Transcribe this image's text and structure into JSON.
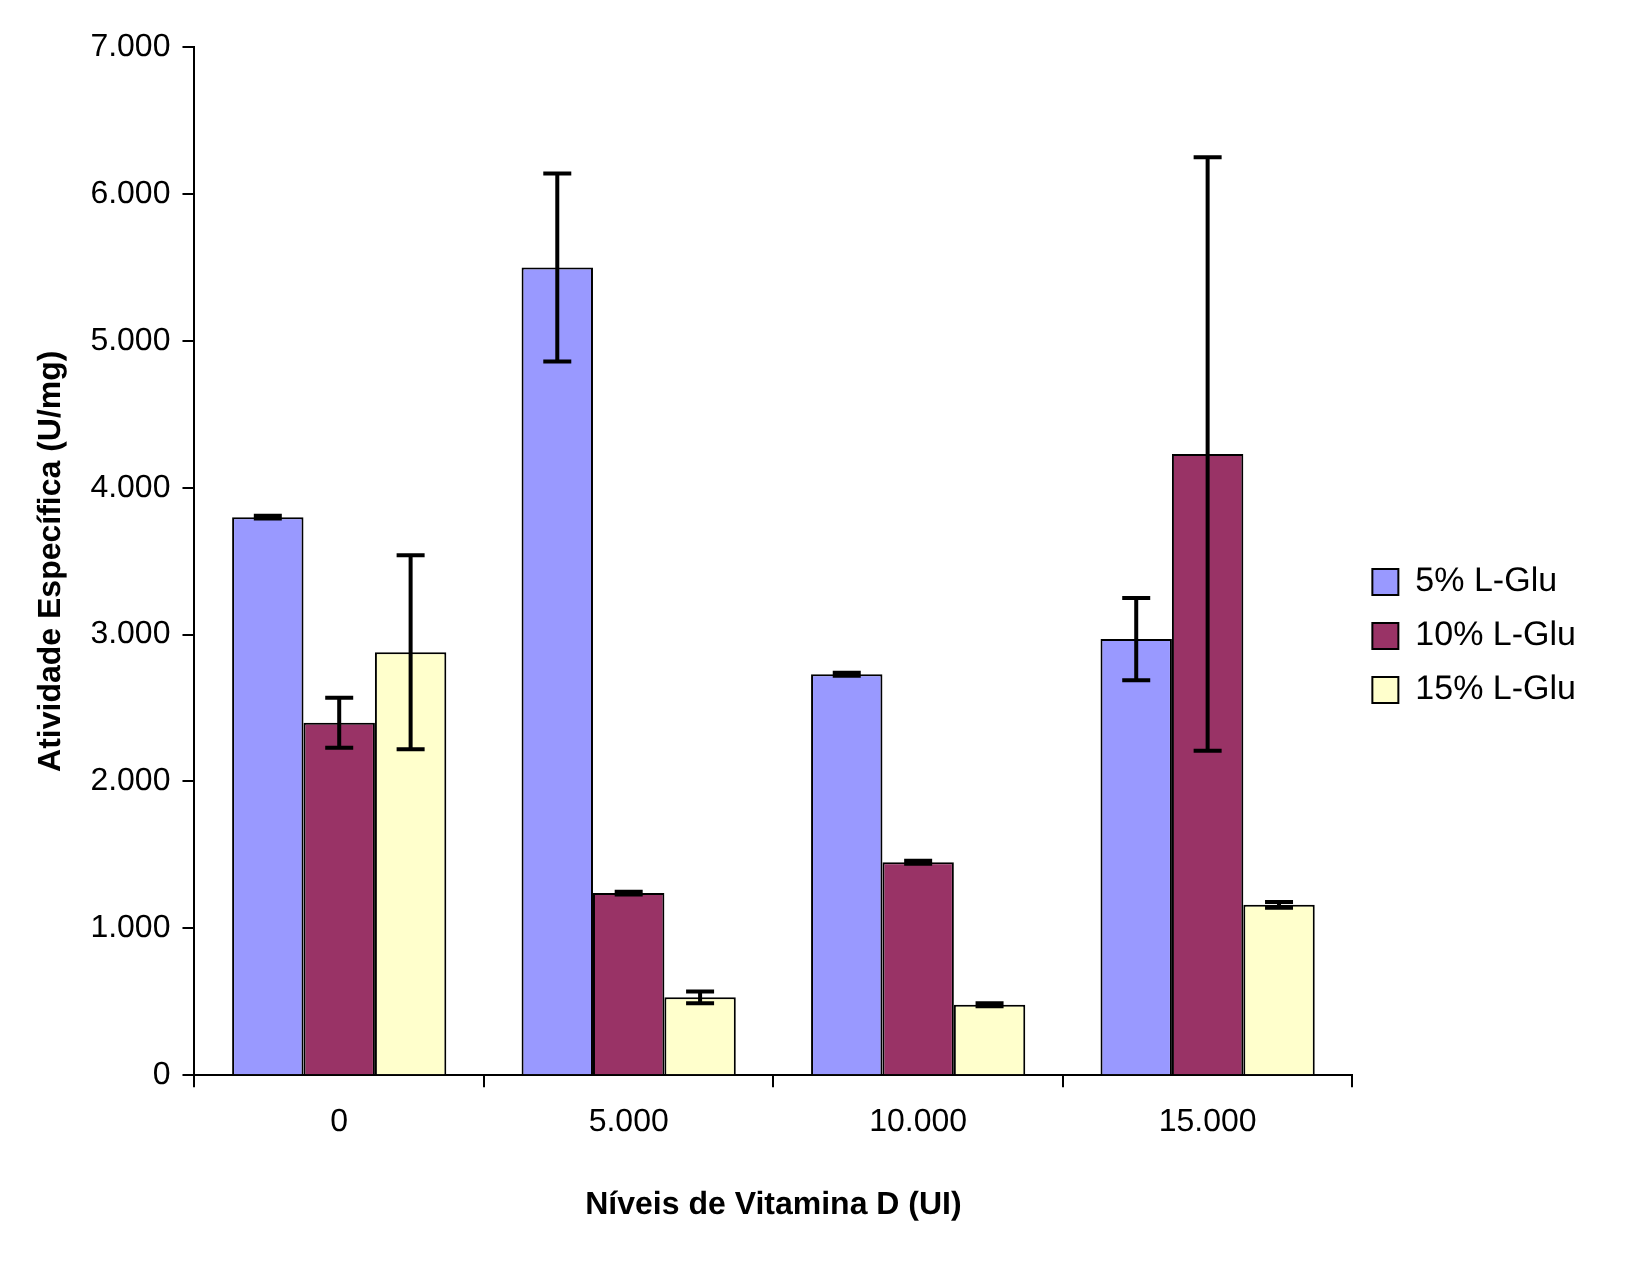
{
  "chart_data": {
    "type": "bar",
    "xlabel": "Níveis de Vitamina D (UI)",
    "ylabel": "Atividade Específica (U/mg)",
    "categories": [
      "0",
      "5.000",
      "10.000",
      "15.000"
    ],
    "series": [
      {
        "name": "5% L-Glu",
        "color": "#9999ff",
        "values": [
          3800,
          5500,
          2730,
          2970
        ],
        "errors": [
          10,
          640,
          10,
          280
        ]
      },
      {
        "name": "10% L-Glu",
        "color": "#993366",
        "values": [
          2400,
          1240,
          1450,
          4230
        ],
        "errors": [
          170,
          10,
          10,
          2020
        ]
      },
      {
        "name": "15% L-Glu",
        "color": "#ffffcc",
        "values": [
          2880,
          530,
          480,
          1160
        ],
        "errors": [
          660,
          40,
          10,
          20
        ]
      }
    ],
    "ylim": [
      0,
      7000
    ],
    "yticks": [
      0,
      {
        "value": 1000,
        "label": "1.000"
      },
      {
        "value": 2000,
        "label": "2.000"
      },
      {
        "value": 3000,
        "label": "3.000"
      },
      {
        "value": 4000,
        "label": "4.000"
      },
      {
        "value": 5000,
        "label": "5.000"
      },
      {
        "value": 6000,
        "label": "6.000"
      },
      {
        "value": 7000,
        "label": "7.000"
      }
    ],
    "grid": false,
    "legend": "right"
  }
}
